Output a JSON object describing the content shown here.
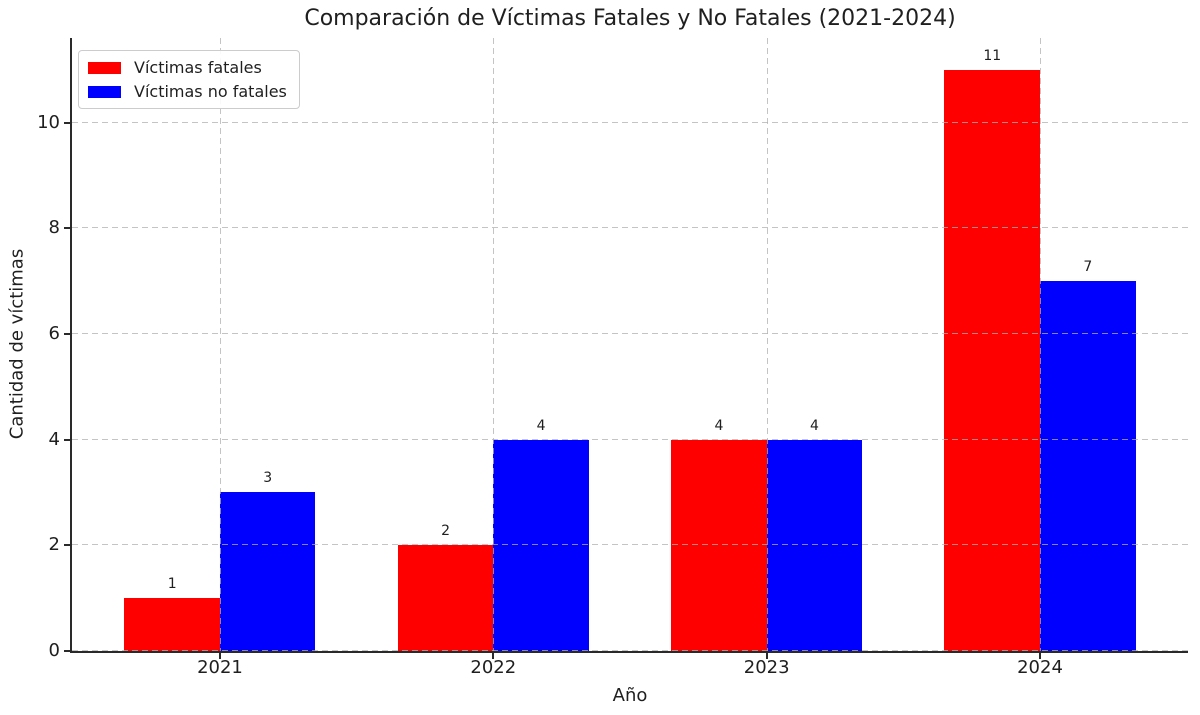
{
  "chart_data": {
    "type": "bar",
    "title": "Comparación de Víctimas Fatales y No Fatales (2021-2024)",
    "xlabel": "Año",
    "ylabel": "Cantidad de víctimas",
    "categories": [
      "2021",
      "2022",
      "2023",
      "2024"
    ],
    "series": [
      {
        "name": "Víctimas fatales",
        "color": "#ff0000",
        "values": [
          1,
          2,
          4,
          11
        ]
      },
      {
        "name": "Víctimas no fatales",
        "color": "#0000ff",
        "values": [
          3,
          4,
          4,
          7
        ]
      }
    ],
    "bar_value_labels": [
      [
        1,
        2,
        4,
        11
      ],
      [
        3,
        4,
        4,
        7
      ]
    ],
    "yticks": [
      0,
      2,
      4,
      6,
      8,
      10
    ],
    "ylim": [
      0,
      11.6
    ],
    "grid": {
      "visible": true,
      "style": "dashed",
      "color": "#b0b0b0",
      "above_bars": true
    },
    "legend": {
      "position": "upper left"
    },
    "spines": {
      "left": true,
      "bottom": true,
      "top": false,
      "right": false
    }
  }
}
